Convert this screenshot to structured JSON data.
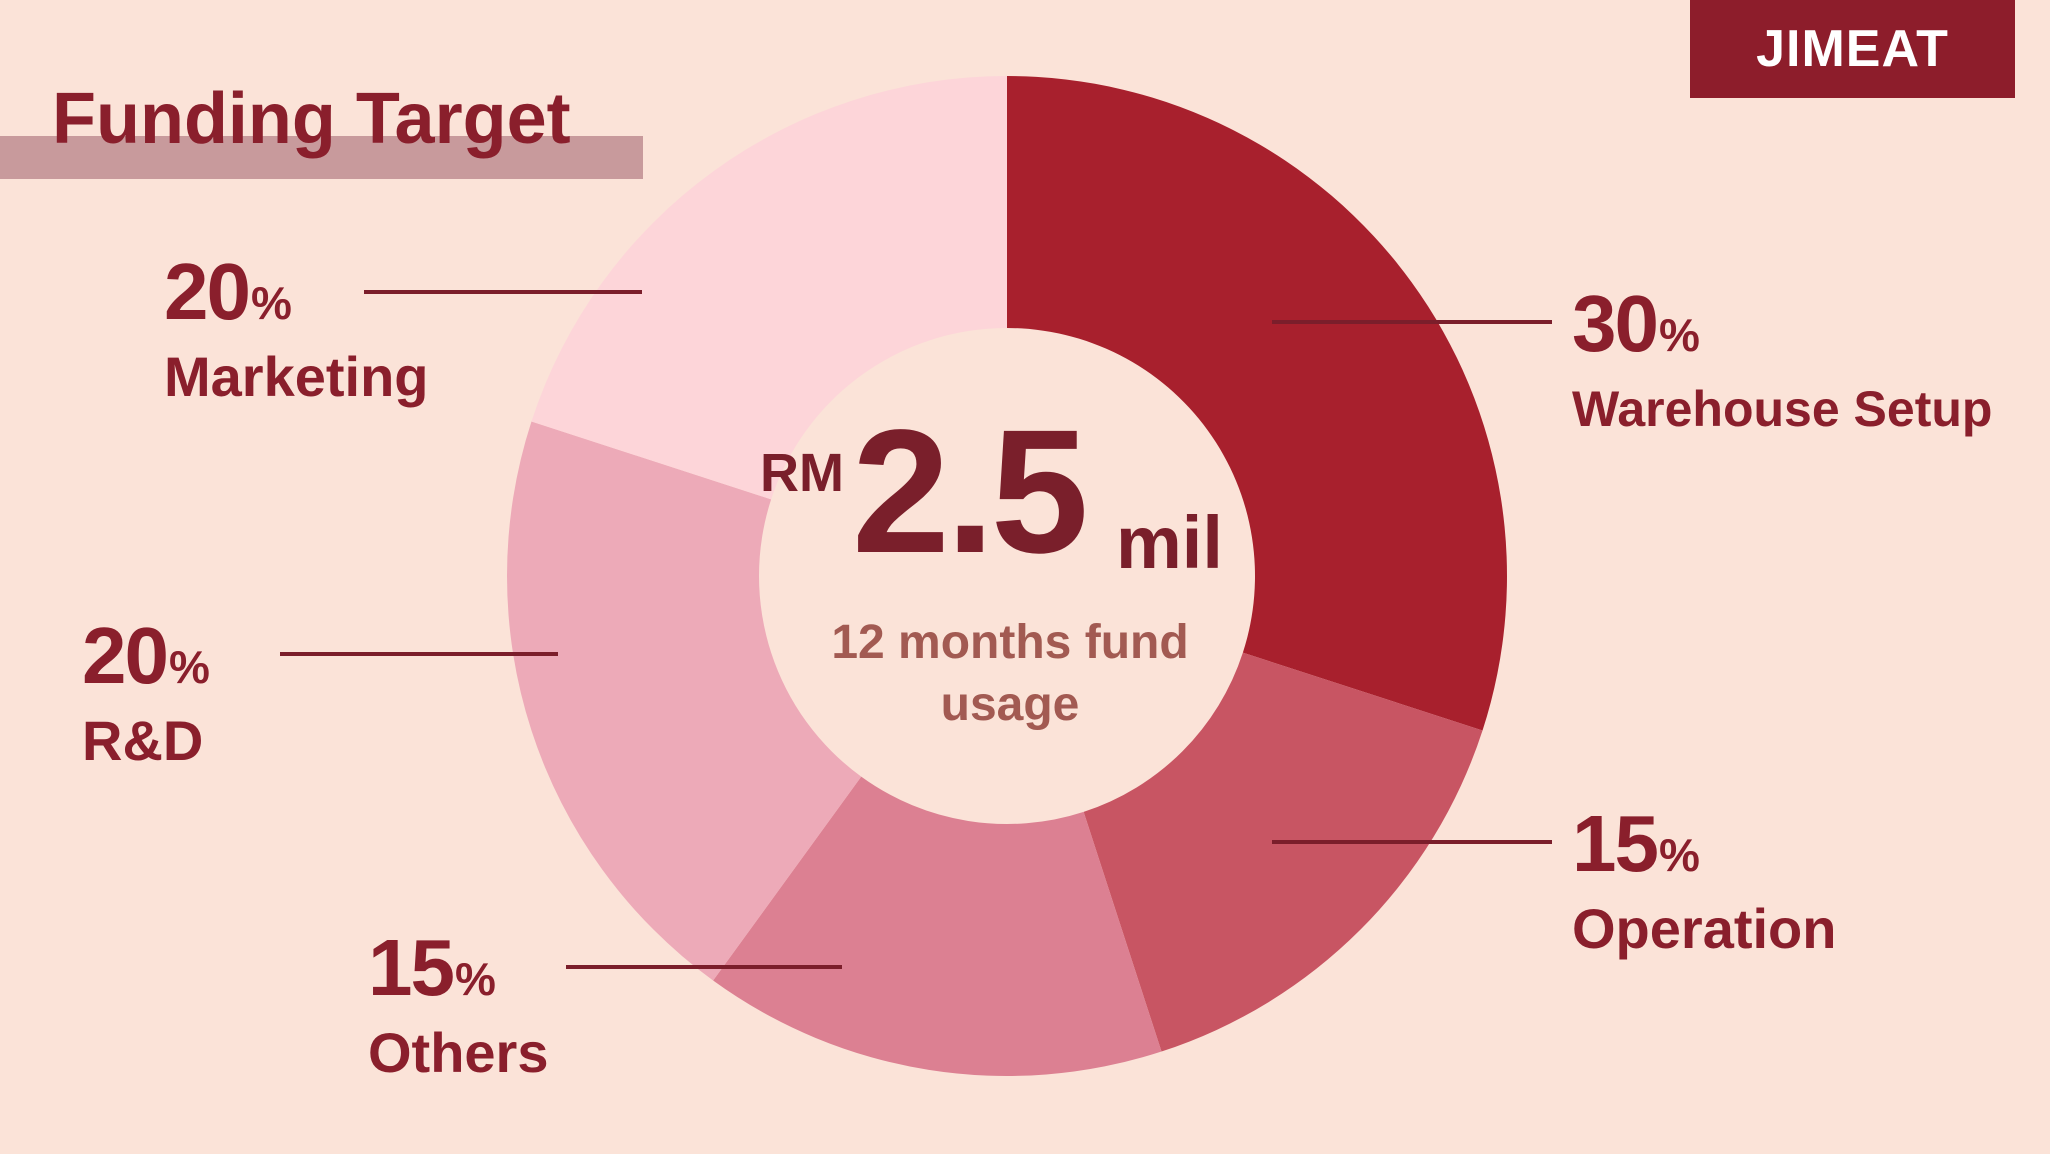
{
  "brand": "JIMEAT",
  "chart_data": {
    "type": "pie",
    "title": "Funding Target",
    "total": {
      "prefix": "RM",
      "value": "2.5",
      "suffix": "mil"
    },
    "subtitle": "12 months fund usage",
    "slices": [
      {
        "label": "Warehouse Setup",
        "value": 30,
        "color": "#a8202d"
      },
      {
        "label": "Operation",
        "value": 15,
        "color": "#c85563"
      },
      {
        "label": "Others",
        "value": 15,
        "color": "#dc8092"
      },
      {
        "label": "R&D",
        "value": 20,
        "color": "#edaab8"
      },
      {
        "label": "Marketing",
        "value": 20,
        "color": "#fdd5d9"
      }
    ],
    "percent_symbol": "%",
    "leader_line_color": "#7b1e2b"
  }
}
